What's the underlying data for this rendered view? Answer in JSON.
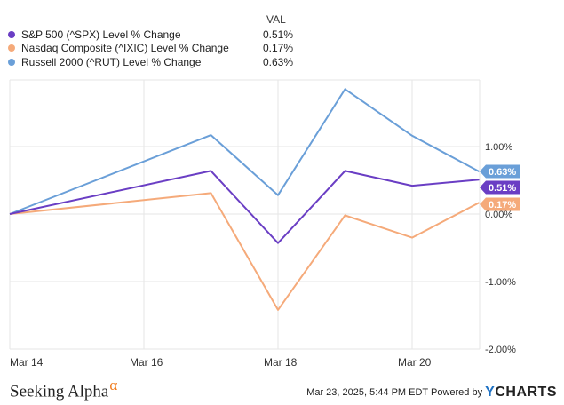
{
  "legend": {
    "header": "VAL",
    "items": [
      {
        "name": "S&P 500 (^SPX) Level % Change",
        "value": "0.51%",
        "color": "#6a3ec4"
      },
      {
        "name": "Nasdaq Composite (^IXIC) Level % Change",
        "value": "0.17%",
        "color": "#f5aa7a"
      },
      {
        "name": "Russell 2000 (^RUT) Level % Change",
        "value": "0.63%",
        "color": "#6a9fd8"
      }
    ]
  },
  "chart_data": {
    "type": "line",
    "x": [
      "Mar 14",
      "Mar 17",
      "Mar 18",
      "Mar 19",
      "Mar 20",
      "Mar 21"
    ],
    "x_tick_labels": [
      "Mar 14",
      "Mar 16",
      "Mar 18",
      "Mar 20"
    ],
    "series": [
      {
        "name": "S&P 500 (^SPX) Level % Change",
        "values": [
          0.0,
          0.64,
          -0.43,
          0.64,
          0.42,
          0.51
        ],
        "end_label": "0.51%"
      },
      {
        "name": "Nasdaq Composite (^IXIC) Level % Change",
        "values": [
          0.0,
          0.31,
          -1.42,
          -0.02,
          -0.35,
          0.17
        ],
        "end_label": "0.17%"
      },
      {
        "name": "Russell 2000 (^RUT) Level % Change",
        "values": [
          0.0,
          1.17,
          0.28,
          1.85,
          1.16,
          0.63
        ],
        "end_label": "0.63%"
      }
    ],
    "y_tick_labels": [
      "1.00%",
      "0.00%",
      "-1.00%",
      "-2.00%"
    ],
    "y_ticks": [
      1.0,
      0.0,
      -1.0,
      -2.0
    ],
    "ylim": [
      -2.0,
      2.0
    ],
    "grid": true,
    "legend_position": "top-left"
  },
  "footer": {
    "brand": "Seeking Alpha",
    "brand_mark": "α",
    "timestamp": "Mar 23, 2025, 5:44 PM EDT",
    "powered_by": "Powered by",
    "provider": "YCHARTS"
  }
}
